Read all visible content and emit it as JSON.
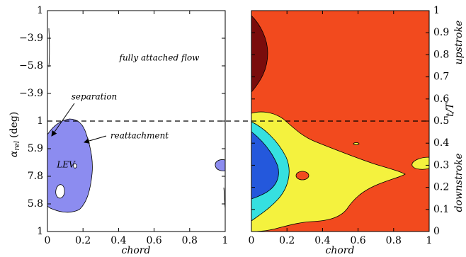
{
  "chart_data": [
    {
      "type": "contour",
      "xlabel": "chord",
      "ylabel": {
        "symbol": "α",
        "subscript": "rel",
        "unit": "(deg)"
      },
      "xlim": [
        0,
        1
      ],
      "xticks": [
        0,
        0.2,
        0.4,
        0.6,
        0.8,
        1
      ],
      "ylim": [
        0,
        1
      ],
      "yticks": [
        1,
        {
          "value": 0.875,
          "label": "−3.9"
        },
        {
          "value": 0.75,
          "label": "−5.8"
        },
        {
          "value": 0.625,
          "label": "−3.9"
        },
        {
          "value": 0.5,
          "label": "1"
        },
        {
          "value": 0.375,
          "label": "5.9"
        },
        {
          "value": 0.25,
          "label": "7.8"
        },
        {
          "value": 0.125,
          "label": "5.8"
        },
        {
          "value": 0,
          "label": "1"
        }
      ],
      "annotations": [
        "fully attached flow",
        "separation",
        "reattachment",
        "LEV"
      ]
    },
    {
      "type": "contour",
      "xlabel": "chord",
      "ylabel": "t/T",
      "xlim": [
        0,
        1
      ],
      "xticks": [
        0,
        0.2,
        0.4,
        0.6,
        0.8,
        1
      ],
      "ylim": [
        0,
        1
      ],
      "yticks": [
        0,
        0.1,
        0.2,
        0.3,
        0.4,
        0.5,
        0.6,
        0.7,
        0.8,
        0.9,
        1
      ],
      "phase_labels": [
        "upstroke",
        "downstroke"
      ]
    }
  ]
}
